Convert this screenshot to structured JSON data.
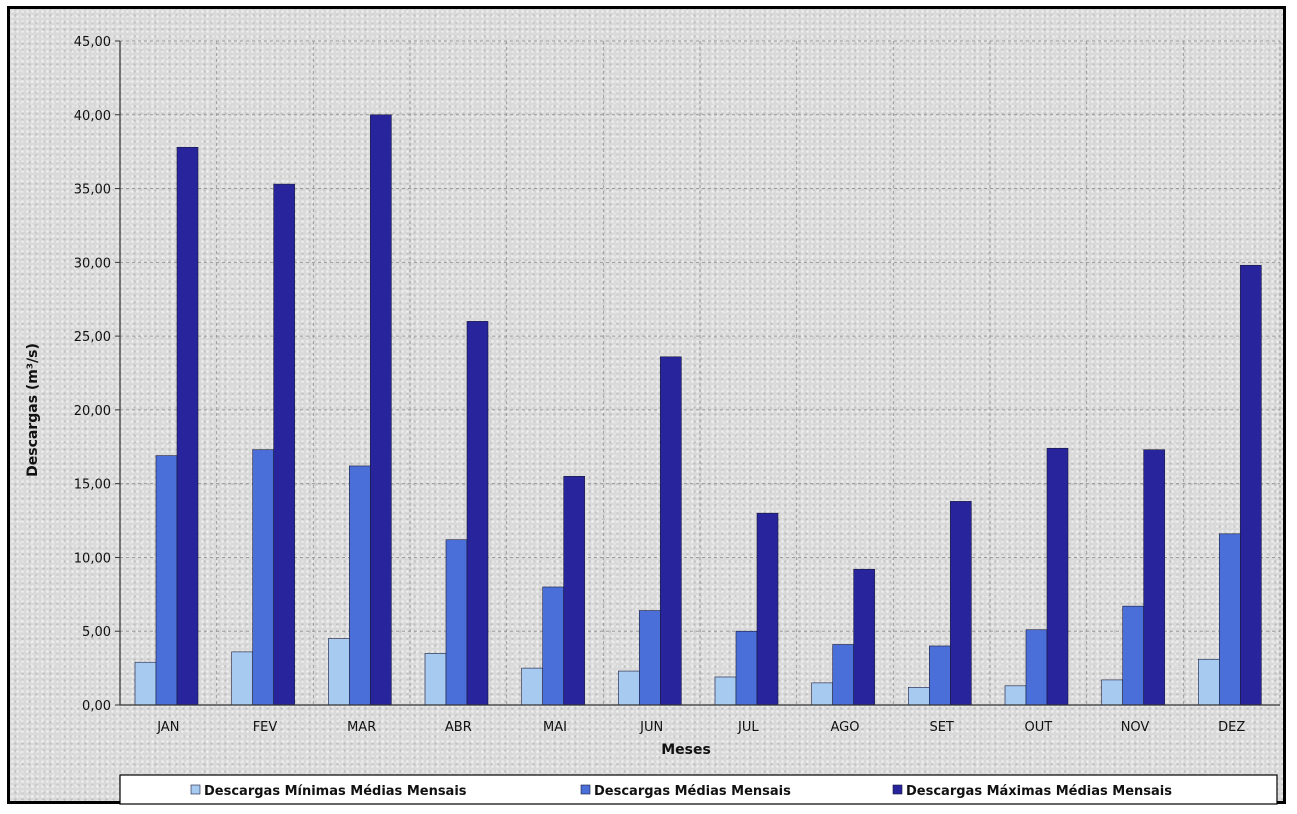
{
  "chart_data": {
    "type": "bar",
    "title": "",
    "xlabel": "Meses",
    "ylabel": "Descargas (m³/s)",
    "ylim": [
      0,
      45
    ],
    "y_ticks": [
      "0,00",
      "5,00",
      "10,00",
      "15,00",
      "20,00",
      "25,00",
      "30,00",
      "35,00",
      "40,00",
      "45,00"
    ],
    "grid": true,
    "legend_position": "bottom",
    "categories": [
      "JAN",
      "FEV",
      "MAR",
      "ABR",
      "MAI",
      "JUN",
      "JUL",
      "AGO",
      "SET",
      "OUT",
      "NOV",
      "DEZ"
    ],
    "series": [
      {
        "name": "Descargas Mínimas Médias Mensais",
        "color": "#a6caf0",
        "values": [
          2.9,
          3.6,
          4.5,
          3.5,
          2.5,
          2.3,
          1.9,
          1.5,
          1.2,
          1.3,
          1.7,
          3.1
        ]
      },
      {
        "name": "Descargas Médias Mensais",
        "color": "#4a6fd8",
        "values": [
          16.9,
          17.3,
          16.2,
          11.2,
          8.0,
          6.4,
          5.0,
          4.1,
          4.0,
          5.1,
          6.7,
          11.6
        ]
      },
      {
        "name": "Descargas Máximas Médias Mensais",
        "color": "#27249c",
        "values": [
          37.8,
          35.3,
          40.0,
          26.0,
          15.5,
          23.6,
          13.0,
          9.2,
          13.8,
          17.4,
          17.3,
          29.8
        ]
      }
    ]
  }
}
